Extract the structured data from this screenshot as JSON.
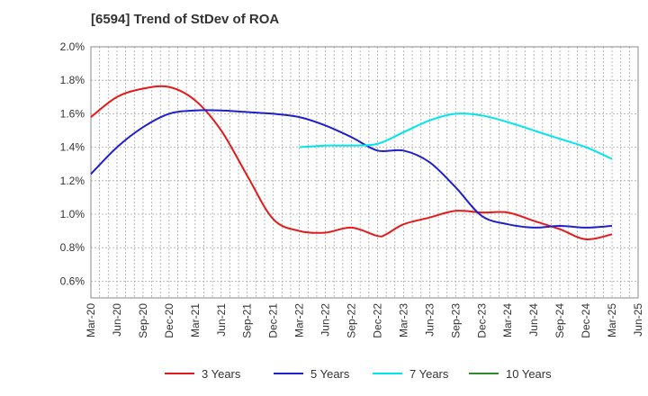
{
  "chart_data": {
    "type": "line",
    "title": "[6594]  Trend of StDev of ROA",
    "xlabel": "",
    "ylabel": "",
    "ylim": [
      0.5,
      2.0
    ],
    "y_ticks": [
      "0.6%",
      "0.8%",
      "1.0%",
      "1.2%",
      "1.4%",
      "1.6%",
      "1.8%",
      "2.0%"
    ],
    "x_ticks": [
      "Mar-20",
      "Jun-20",
      "Sep-20",
      "Dec-20",
      "Mar-21",
      "Jun-21",
      "Sep-21",
      "Dec-21",
      "Mar-22",
      "Jun-22",
      "Sep-22",
      "Dec-22",
      "Mar-23",
      "Jun-23",
      "Sep-23",
      "Dec-23",
      "Mar-24",
      "Jun-24",
      "Sep-24",
      "Dec-24",
      "Mar-25",
      "Jun-25"
    ],
    "grid": true,
    "legend_position": "bottom",
    "series": [
      {
        "name": "3 Years",
        "color": "#e31a1c",
        "values": [
          [
            "Mar-20",
            1.58
          ],
          [
            "Jun-20",
            1.7
          ],
          [
            "Sep-20",
            1.75
          ],
          [
            "Dec-20",
            1.76
          ],
          [
            "Mar-21",
            1.68
          ],
          [
            "Jun-21",
            1.5
          ],
          [
            "Sep-21",
            1.23
          ],
          [
            "Dec-21",
            0.97
          ],
          [
            "Mar-22",
            0.9
          ],
          [
            "Jun-22",
            0.89
          ],
          [
            "Sep-22",
            0.92
          ],
          [
            "Dec-22",
            0.87
          ],
          [
            "Jan-23",
            0.88
          ],
          [
            "Mar-23",
            0.94
          ],
          [
            "Jun-23",
            0.98
          ],
          [
            "Sep-23",
            1.02
          ],
          [
            "Dec-23",
            1.01
          ],
          [
            "Mar-24",
            1.01
          ],
          [
            "Jun-24",
            0.96
          ],
          [
            "Sep-24",
            0.91
          ],
          [
            "Dec-24",
            0.85
          ],
          [
            "Mar-25",
            0.88
          ]
        ]
      },
      {
        "name": "5 Years",
        "color": "#1f1fcc",
        "values": [
          [
            "Mar-20",
            1.24
          ],
          [
            "Jun-20",
            1.4
          ],
          [
            "Sep-20",
            1.52
          ],
          [
            "Dec-20",
            1.6
          ],
          [
            "Mar-21",
            1.62
          ],
          [
            "Jun-21",
            1.62
          ],
          [
            "Sep-21",
            1.61
          ],
          [
            "Dec-21",
            1.6
          ],
          [
            "Mar-22",
            1.58
          ],
          [
            "Jun-22",
            1.53
          ],
          [
            "Sep-22",
            1.46
          ],
          [
            "Dec-22",
            1.38
          ],
          [
            "Mar-23",
            1.38
          ],
          [
            "Jun-23",
            1.31
          ],
          [
            "Sep-23",
            1.16
          ],
          [
            "Dec-23",
            0.99
          ],
          [
            "Mar-24",
            0.94
          ],
          [
            "Jun-24",
            0.92
          ],
          [
            "Sep-24",
            0.93
          ],
          [
            "Dec-24",
            0.92
          ],
          [
            "Mar-25",
            0.93
          ]
        ]
      },
      {
        "name": "7 Years",
        "color": "#00e5ee",
        "values": [
          [
            "Mar-22",
            1.4
          ],
          [
            "Jun-22",
            1.41
          ],
          [
            "Sep-22",
            1.41
          ],
          [
            "Dec-22",
            1.42
          ],
          [
            "Mar-23",
            1.49
          ],
          [
            "Jun-23",
            1.56
          ],
          [
            "Sep-23",
            1.6
          ],
          [
            "Dec-23",
            1.59
          ],
          [
            "Mar-24",
            1.55
          ],
          [
            "Jun-24",
            1.5
          ],
          [
            "Sep-24",
            1.45
          ],
          [
            "Dec-24",
            1.4
          ],
          [
            "Mar-25",
            1.33
          ]
        ]
      },
      {
        "name": "10 Years",
        "color": "#2e8b2e",
        "values": []
      }
    ]
  }
}
